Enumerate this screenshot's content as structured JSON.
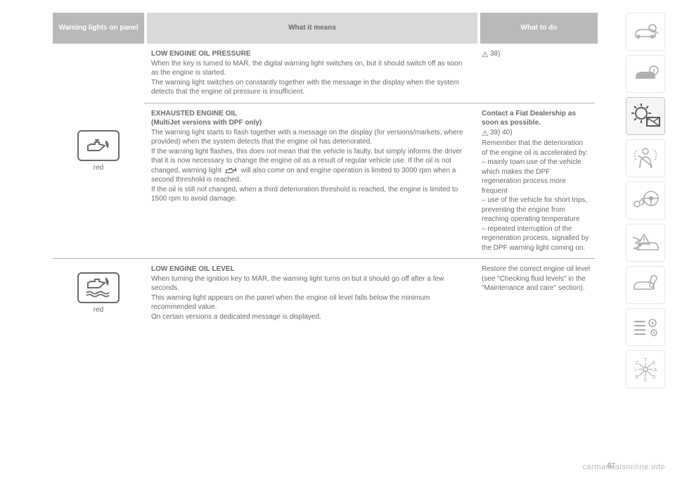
{
  "header": {
    "panel": "Warning lights on panel",
    "means": "What it means",
    "todo": "What to do"
  },
  "rows": [
    {
      "panel": {
        "icon": "oil-can",
        "label": "red"
      },
      "sections": [
        {
          "title": "LOW ENGINE OIL PRESSURE",
          "body": "When the key is turned to MAR, the digital warning light switches on, but it should switch off as soon as the engine is started.\nThe warning light switches on constantly together with the message in the display when the system detects that the engine oil pressure is insufficient.",
          "todo_warn_ref": "38)"
        },
        {
          "title": "EXHAUSTED ENGINE OIL",
          "subtitle": "(MultiJet versions with DPF only)",
          "body": "The warning light starts to flash together with a message on the display (for versions/markets, where provided) when the system detects that the engine oil has deteriorated.\nIf the warning light flashes, this does not mean that the vehicle is faulty, but simply informs the driver that it is now necessary to change the engine oil as a result of regular vehicle use. If the oil is not changed, warning light ",
          "body2": " will also come on and engine operation is limited to 3000 rpm when a second threshold is reached.\nIf the oil is still not changed, when a third deterioration threshold is reached, the engine is limited to 1500 rpm to avoid damage.",
          "inline_icon": "oil-can-small",
          "todo_title": "Contact a Fiat Dealership as soon as possible.",
          "todo_warn_ref": "39) 40)",
          "todo_body": "Remember that the deterioration of the engine oil is accelerated by:\n– mainly town use of the vehicle which makes the DPF regeneration process more frequent\n– use of the vehicle for short trips, preventing the engine from reaching operating temperature\n– repeated interruption of the regeneration process, signalled by the DPF warning light coming on."
        }
      ]
    },
    {
      "panel": {
        "icon": "oil-level",
        "label": "red"
      },
      "sections": [
        {
          "title": "LOW ENGINE OIL LEVEL",
          "body": "When turning the ignition key to MAR, the warning light turns on but it should go off after a few seconds.\nThis warning light appears on the panel when the engine oil level falls below the minimum recommended value.\nOn certain versions a dedicated message is displayed.",
          "todo_body": "Restore the correct engine oil level (see \"Checking fluid levels\" in the \"Maintenance and care\" section)."
        }
      ]
    }
  ],
  "sidebar": [
    "car-magnify",
    "car-info",
    "warning-light",
    "seatbelt",
    "key-wheel",
    "car-crash",
    "car-wrench",
    "list-gear",
    "gearbox"
  ],
  "sidebar_active_index": 2,
  "page_number": "87",
  "watermark": "carmanualsonline.info",
  "colors": {
    "header_dark": "#b9b9b9",
    "header_light": "#d9d9d9",
    "text": "#6a6a6a"
  }
}
